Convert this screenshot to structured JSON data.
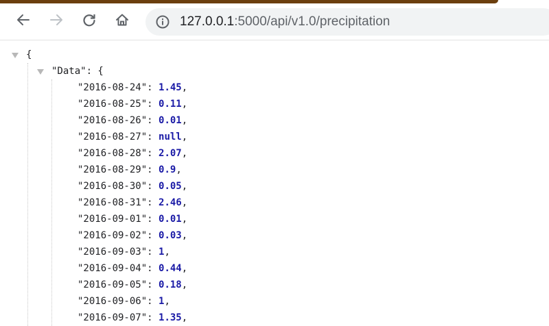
{
  "browser": {
    "back_icon": "arrow-left-icon",
    "forward_icon": "arrow-right-icon",
    "reload_icon": "reload-icon",
    "home_icon": "home-icon",
    "info_icon": "info-icon",
    "url_host": "127.0.0.1",
    "url_rest": ":5000/api/v1.0/precipitation"
  },
  "json_viewer": {
    "open_brace": "{",
    "data_key": "\"Data\"",
    "data_open": ": {",
    "entries": [
      {
        "key": "\"2016-08-24\"",
        "value": "1.45",
        "type": "number"
      },
      {
        "key": "\"2016-08-25\"",
        "value": "0.11",
        "type": "number"
      },
      {
        "key": "\"2016-08-26\"",
        "value": "0.01",
        "type": "number"
      },
      {
        "key": "\"2016-08-27\"",
        "value": "null",
        "type": "null"
      },
      {
        "key": "\"2016-08-28\"",
        "value": "2.07",
        "type": "number"
      },
      {
        "key": "\"2016-08-29\"",
        "value": "0.9",
        "type": "number"
      },
      {
        "key": "\"2016-08-30\"",
        "value": "0.05",
        "type": "number"
      },
      {
        "key": "\"2016-08-31\"",
        "value": "2.46",
        "type": "number"
      },
      {
        "key": "\"2016-09-01\"",
        "value": "0.01",
        "type": "number"
      },
      {
        "key": "\"2016-09-02\"",
        "value": "0.03",
        "type": "number"
      },
      {
        "key": "\"2016-09-03\"",
        "value": "1",
        "type": "number"
      },
      {
        "key": "\"2016-09-04\"",
        "value": "0.44",
        "type": "number"
      },
      {
        "key": "\"2016-09-05\"",
        "value": "0.18",
        "type": "number"
      },
      {
        "key": "\"2016-09-06\"",
        "value": "1",
        "type": "number"
      },
      {
        "key": "\"2016-09-07\"",
        "value": "1.35",
        "type": "number"
      }
    ],
    "colon": ": ",
    "comma": ","
  }
}
